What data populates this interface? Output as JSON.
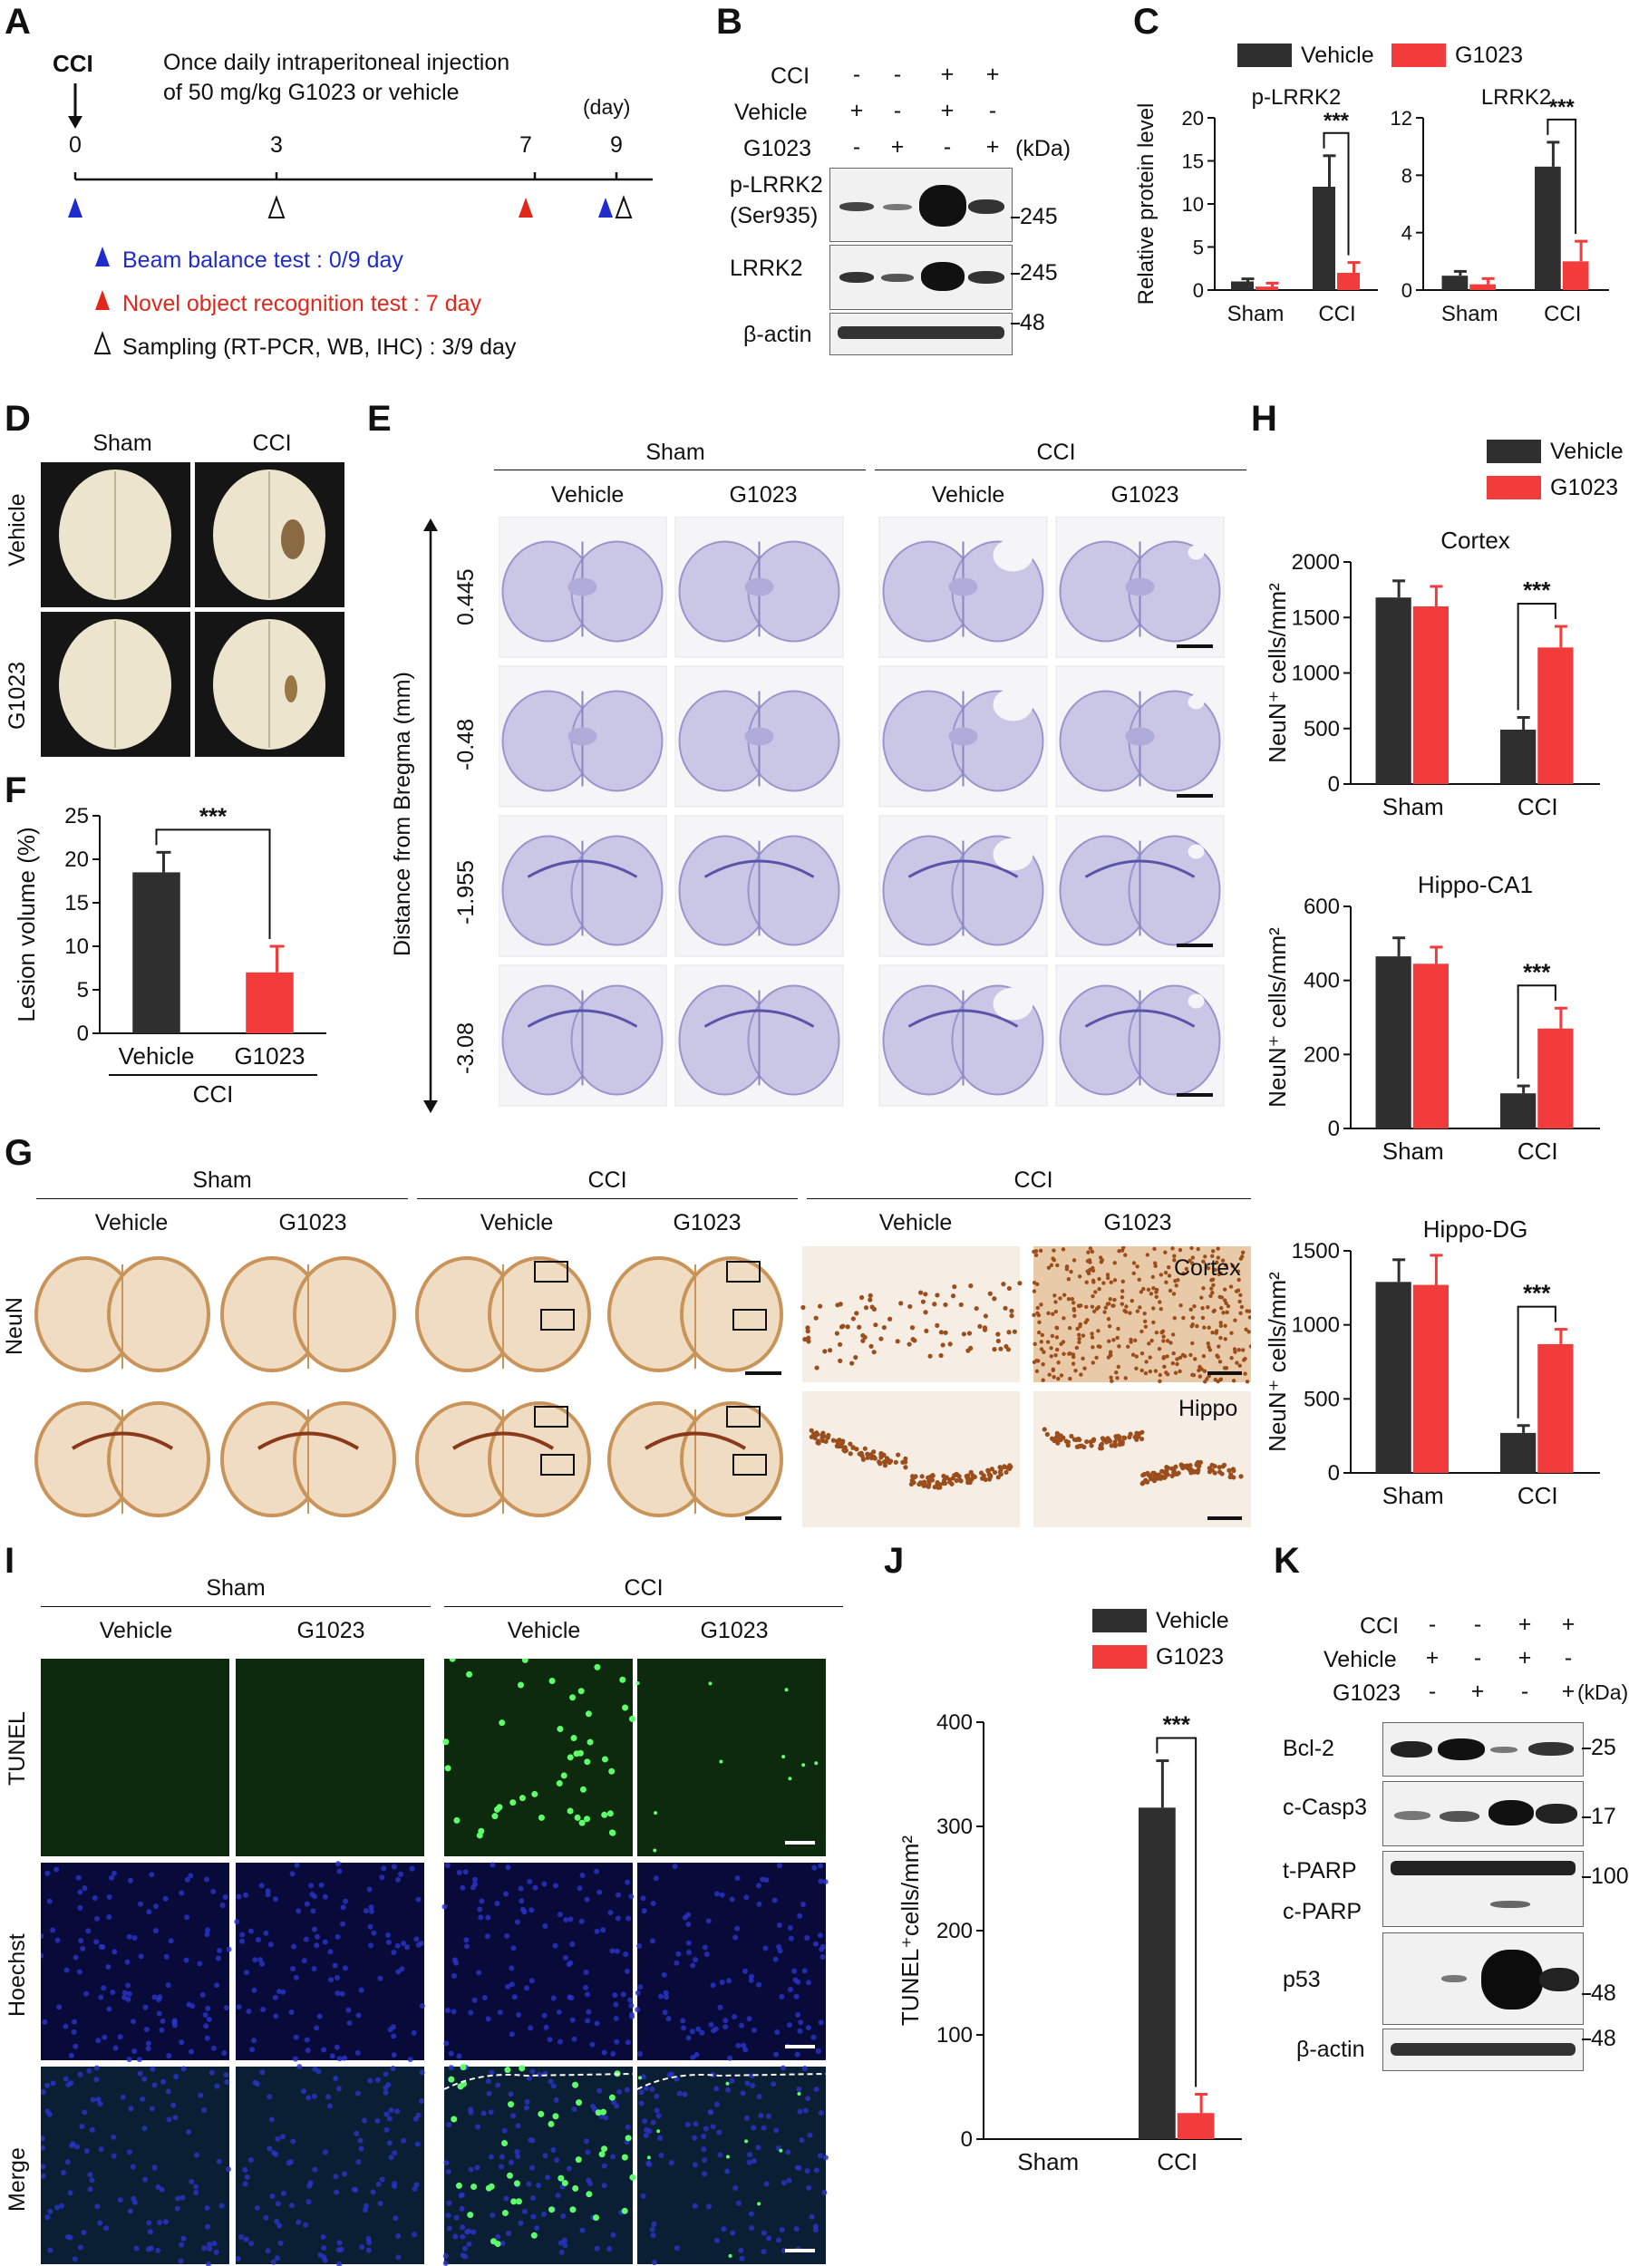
{
  "panels": [
    "A",
    "B",
    "C",
    "D",
    "E",
    "F",
    "G",
    "H",
    "I",
    "J",
    "K"
  ],
  "panelA": {
    "cci": "CCI",
    "desc1": "Once daily intraperitoneal injection",
    "desc2": "of 50 mg/kg G1023 or vehicle",
    "day_unit": "(day)",
    "ticks": [
      "0",
      "3",
      "7",
      "9"
    ],
    "legend": [
      {
        "text": "Beam balance test : 0/9 day",
        "color": "#1f2bcc"
      },
      {
        "text": "Novel object recognition test : 7 day",
        "color": "#e0271b"
      },
      {
        "text": "Sampling (RT-PCR, WB, IHC) : 3/9 day",
        "color": "#111111"
      }
    ]
  },
  "panelB": {
    "rows": [
      {
        "label": "CCI",
        "signs": [
          "-",
          "-",
          "+",
          "+"
        ]
      },
      {
        "label": "Vehicle",
        "signs": [
          "+",
          "-",
          "+",
          "-"
        ]
      },
      {
        "label": "G1023",
        "signs": [
          "-",
          "+",
          "-",
          "+"
        ]
      }
    ],
    "kda": "(kDa)",
    "blots": [
      {
        "label": "p-LRRK2",
        "label2": "(Ser935)",
        "mw": "245"
      },
      {
        "label": "LRRK2",
        "label2": "",
        "mw": "245"
      },
      {
        "label": "β-actin",
        "label2": "",
        "mw": "48"
      }
    ]
  },
  "legend_series": [
    {
      "name": "Vehicle",
      "color": "#2f2f2f"
    },
    {
      "name": "G1023",
      "color": "#f23b3b"
    }
  ],
  "panelD": {
    "cols": [
      "Sham",
      "CCI"
    ],
    "rows": [
      "Vehicle",
      "G1023"
    ]
  },
  "panelE": {
    "groups": [
      "Sham",
      "CCI"
    ],
    "cols": [
      "Vehicle",
      "G1023",
      "Vehicle",
      "G1023"
    ],
    "axis_label": "Distance from Bregma (mm)",
    "levels": [
      "0.445",
      "-0.48",
      "-1.955",
      "-3.08"
    ]
  },
  "panelG": {
    "groups": [
      "Sham",
      "CCI",
      "CCI"
    ],
    "cols": [
      "Vehicle",
      "G1023",
      "Vehicle",
      "G1023",
      "Vehicle",
      "G1023"
    ],
    "row_label": "NeuN",
    "insets": [
      "Cortex",
      "Hippo"
    ]
  },
  "panelI": {
    "groups": [
      "Sham",
      "CCI"
    ],
    "cols": [
      "Vehicle",
      "G1023",
      "Vehicle",
      "G1023"
    ],
    "rows": [
      "TUNEL",
      "Hoechst",
      "Merge"
    ]
  },
  "panelK": {
    "rows": [
      {
        "label": "CCI",
        "signs": [
          "-",
          "-",
          "+",
          "+"
        ]
      },
      {
        "label": "Vehicle",
        "signs": [
          "+",
          "-",
          "+",
          "-"
        ]
      },
      {
        "label": "G1023",
        "signs": [
          "-",
          "+",
          "-",
          "+"
        ]
      }
    ],
    "kda": "(kDa)",
    "blots": [
      {
        "label": "Bcl-2",
        "mw": "25"
      },
      {
        "label": "c-Casp3",
        "mw": "17"
      },
      {
        "label": "t-PARP",
        "mw": "100"
      },
      {
        "label": "c-PARP",
        "mw": ""
      },
      {
        "label": "p53",
        "mw": "48"
      },
      {
        "label": "β-actin",
        "mw": "48"
      }
    ]
  },
  "sig": "***",
  "chart_data": [
    {
      "id": "C1",
      "type": "bar",
      "title": "p-LRRK2",
      "ylabel": "Relative protein level",
      "categories": [
        "Sham",
        "CCI"
      ],
      "series": [
        {
          "name": "Vehicle",
          "values": [
            1.0,
            12.0
          ],
          "errors": [
            0.3,
            3.6
          ]
        },
        {
          "name": "G1023",
          "values": [
            0.4,
            2.0
          ],
          "errors": [
            0.4,
            1.2
          ]
        }
      ],
      "ylim": [
        0,
        20
      ],
      "yticks": [
        0,
        5,
        10,
        15,
        20
      ]
    },
    {
      "id": "C2",
      "type": "bar",
      "title": "LRRK2",
      "ylabel": "",
      "categories": [
        "Sham",
        "CCI"
      ],
      "series": [
        {
          "name": "Vehicle",
          "values": [
            1.0,
            8.6
          ],
          "errors": [
            0.3,
            1.7
          ]
        },
        {
          "name": "G1023",
          "values": [
            0.4,
            2.0
          ],
          "errors": [
            0.4,
            1.4
          ]
        }
      ],
      "ylim": [
        0,
        12
      ],
      "yticks": [
        0,
        4,
        8,
        12
      ]
    },
    {
      "id": "F",
      "type": "bar",
      "title": "",
      "ylabel": "Lesion volume (%)",
      "categories": [
        "Vehicle",
        "G1023"
      ],
      "group_label": "CCI",
      "values": [
        18.5,
        7.0
      ],
      "errors": [
        2.3,
        3.0
      ],
      "colors": [
        "#2f2f2f",
        "#f23b3b"
      ],
      "ylim": [
        0,
        25
      ],
      "yticks": [
        0,
        5,
        10,
        15,
        20,
        25
      ]
    },
    {
      "id": "H1",
      "type": "bar",
      "title": "Cortex",
      "ylabel": "NeuN⁺ cells/mm²",
      "categories": [
        "Sham",
        "CCI"
      ],
      "series": [
        {
          "name": "Vehicle",
          "values": [
            1680,
            490
          ],
          "errors": [
            150,
            110
          ]
        },
        {
          "name": "G1023",
          "values": [
            1600,
            1230
          ],
          "errors": [
            180,
            190
          ]
        }
      ],
      "ylim": [
        0,
        2000
      ],
      "yticks": [
        0,
        500,
        1000,
        1500,
        2000
      ]
    },
    {
      "id": "H2",
      "type": "bar",
      "title": "Hippo-CA1",
      "ylabel": "NeuN⁺ cells/mm²",
      "categories": [
        "Sham",
        "CCI"
      ],
      "series": [
        {
          "name": "Vehicle",
          "values": [
            465,
            95
          ],
          "errors": [
            50,
            20
          ]
        },
        {
          "name": "G1023",
          "values": [
            445,
            270
          ],
          "errors": [
            45,
            55
          ]
        }
      ],
      "ylim": [
        0,
        600
      ],
      "yticks": [
        0,
        200,
        400,
        600
      ]
    },
    {
      "id": "H3",
      "type": "bar",
      "title": "Hippo-DG",
      "ylabel": "NeuN⁺ cells/mm²",
      "categories": [
        "Sham",
        "CCI"
      ],
      "series": [
        {
          "name": "Vehicle",
          "values": [
            1290,
            270
          ],
          "errors": [
            150,
            50
          ]
        },
        {
          "name": "G1023",
          "values": [
            1270,
            870
          ],
          "errors": [
            200,
            100
          ]
        }
      ],
      "ylim": [
        0,
        1500
      ],
      "yticks": [
        0,
        500,
        1000,
        1500
      ]
    },
    {
      "id": "J",
      "type": "bar",
      "title": "",
      "ylabel": "TUNEL⁺cells/mm²",
      "categories": [
        "Sham",
        "CCI"
      ],
      "series": [
        {
          "name": "Vehicle",
          "values": [
            0,
            318
          ],
          "errors": [
            0,
            45
          ]
        },
        {
          "name": "G1023",
          "values": [
            0,
            25
          ],
          "errors": [
            0,
            18
          ]
        }
      ],
      "ylim": [
        0,
        400
      ],
      "yticks": [
        0,
        100,
        200,
        300,
        400
      ]
    }
  ]
}
